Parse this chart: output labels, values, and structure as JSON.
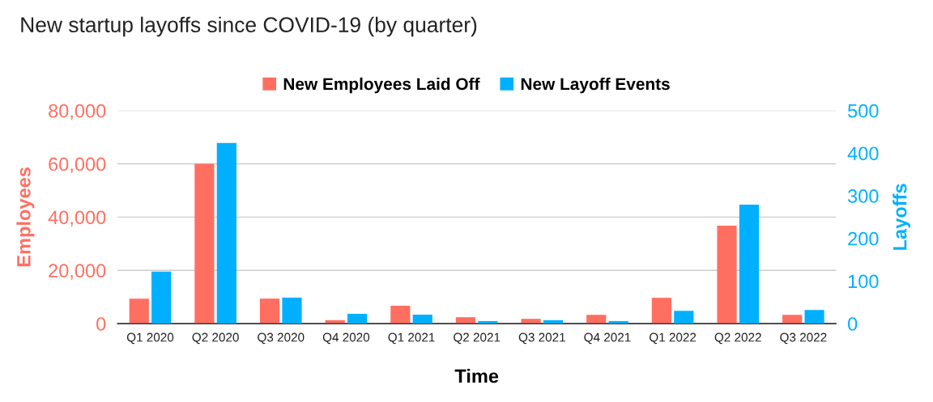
{
  "chart_data": {
    "type": "bar",
    "title": "New startup layoffs since COVID-19 (by quarter)",
    "xlabel": "Time",
    "ylabel": "Employees",
    "y2label": "Layoffs",
    "categories": [
      "Q1 2020",
      "Q2 2020",
      "Q3 2020",
      "Q4 2020",
      "Q1 2021",
      "Q2 2021",
      "Q3 2021",
      "Q4 2021",
      "Q1 2022",
      "Q2 2022",
      "Q3 2022"
    ],
    "series": [
      {
        "name": "New Employees Laid Off",
        "color": "#ff6f61",
        "values": [
          9400,
          60000,
          9400,
          1300,
          6700,
          2400,
          1800,
          3300,
          9700,
          36800,
          3300
        ]
      },
      {
        "name": "New Layoff Events",
        "color": "#00b0ff",
        "axis": "y2",
        "values": [
          122,
          424,
          61,
          23,
          21,
          6,
          8,
          6,
          30,
          279,
          32
        ]
      }
    ],
    "ylim": [
      0,
      80000
    ],
    "yticks": [
      {
        "value": 0,
        "label": "0"
      },
      {
        "value": 20000,
        "label": "20,000"
      },
      {
        "value": 40000,
        "label": "40,000"
      },
      {
        "value": 60000,
        "label": "60,000"
      },
      {
        "value": 80000,
        "label": "80,000"
      }
    ],
    "y2lim": [
      0,
      500
    ],
    "y2ticks": [
      0,
      100,
      200,
      300,
      400,
      500
    ],
    "grid": "y",
    "legend": "top"
  }
}
